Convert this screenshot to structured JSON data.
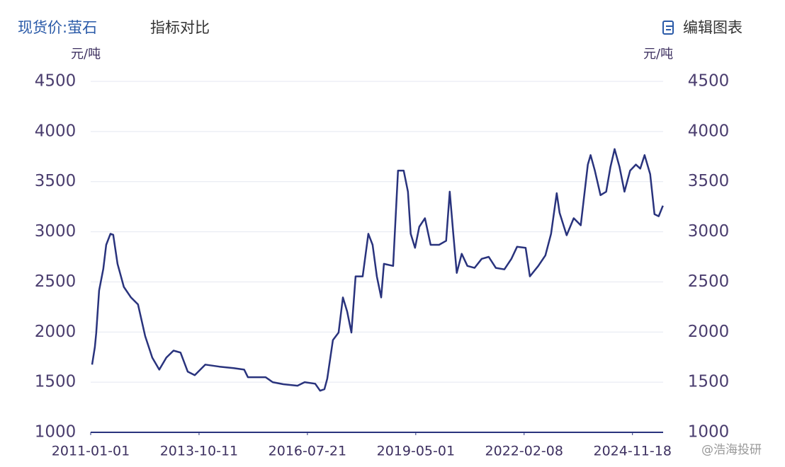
{
  "header": {
    "title": "现货价:萤石",
    "compare": "指标对比",
    "edit": "编辑图表"
  },
  "watermark": "@浩海投研",
  "chart_data": {
    "type": "line",
    "y_unit": "元/吨",
    "y2_unit": "元/吨",
    "color": "#29337d",
    "grid": true,
    "xlim": [
      "2011-01-01",
      "2025-09-01"
    ],
    "xticks": [
      "2011-01-01",
      "2013-10-11",
      "2016-07-21",
      "2019-05-01",
      "2022-02-08",
      "2024-11-18"
    ],
    "ylim": [
      1000,
      4500
    ],
    "yticks": [
      1000,
      1500,
      2000,
      2500,
      3000,
      3500,
      4000,
      4500
    ],
    "x": [
      "2011-01-14",
      "2011-02-09",
      "2011-02-22",
      "2011-03-21",
      "2011-04-29",
      "2011-05-26",
      "2011-07-05",
      "2011-07-31",
      "2011-09-09",
      "2011-11-07",
      "2012-01-13",
      "2012-03-19",
      "2012-05-25",
      "2012-07-30",
      "2012-10-04",
      "2012-12-09",
      "2013-02-14",
      "2013-04-21",
      "2013-06-27",
      "2013-09-01",
      "2013-12-09",
      "2014-04-20",
      "2014-08-31",
      "2014-12-08",
      "2015-01-11",
      "2015-06-26",
      "2015-08-31",
      "2015-12-08",
      "2016-04-19",
      "2016-06-25",
      "2016-10-02",
      "2016-11-17",
      "2016-12-27",
      "2017-01-23",
      "2017-03-17",
      "2017-05-09",
      "2017-06-18",
      "2017-07-28",
      "2017-09-06",
      "2017-10-15",
      "2017-12-20",
      "2018-02-11",
      "2018-03-23",
      "2018-05-02",
      "2018-06-11",
      "2018-07-07",
      "2018-10-01",
      "2018-11-16",
      "2019-01-08",
      "2019-02-17",
      "2019-03-15",
      "2019-04-24",
      "2019-06-03",
      "2019-07-26",
      "2019-09-17",
      "2019-12-05",
      "2020-02-09",
      "2020-03-14",
      "2020-04-16",
      "2020-05-19",
      "2020-07-04",
      "2020-08-26",
      "2020-11-01",
      "2021-01-07",
      "2021-03-14",
      "2021-05-19",
      "2021-08-07",
      "2021-10-12",
      "2021-12-04",
      "2022-02-22",
      "2022-04-03",
      "2022-06-21",
      "2022-08-26",
      "2022-10-18",
      "2022-12-10",
      "2023-01-06",
      "2023-03-13",
      "2023-05-18",
      "2023-07-23",
      "2023-09-27",
      "2023-10-23",
      "2023-12-02",
      "2024-01-24",
      "2024-03-17",
      "2024-04-26",
      "2024-06-04",
      "2024-07-20",
      "2024-09-04",
      "2024-10-27",
      "2024-12-20",
      "2025-01-30",
      "2025-03-11",
      "2025-05-03",
      "2025-06-12",
      "2025-07-21",
      "2025-08-30"
    ],
    "values": [
      1675,
      1850,
      1990,
      2415,
      2630,
      2870,
      2980,
      2970,
      2680,
      2450,
      2345,
      2275,
      1960,
      1745,
      1625,
      1745,
      1815,
      1795,
      1605,
      1570,
      1675,
      1655,
      1640,
      1625,
      1550,
      1550,
      1500,
      1480,
      1465,
      1500,
      1485,
      1415,
      1430,
      1535,
      1920,
      1995,
      2345,
      2205,
      1995,
      2555,
      2555,
      2980,
      2870,
      2555,
      2345,
      2680,
      2660,
      3610,
      3610,
      3400,
      2980,
      2840,
      3050,
      3135,
      2870,
      2870,
      2910,
      3400,
      2980,
      2590,
      2780,
      2660,
      2640,
      2730,
      2750,
      2640,
      2625,
      2730,
      2850,
      2840,
      2555,
      2660,
      2765,
      2980,
      3385,
      3190,
      2965,
      3135,
      3065,
      3670,
      3765,
      3610,
      3365,
      3400,
      3645,
      3825,
      3645,
      3400,
      3610,
      3670,
      3630,
      3765,
      3575,
      3175,
      3155,
      3260
    ]
  }
}
